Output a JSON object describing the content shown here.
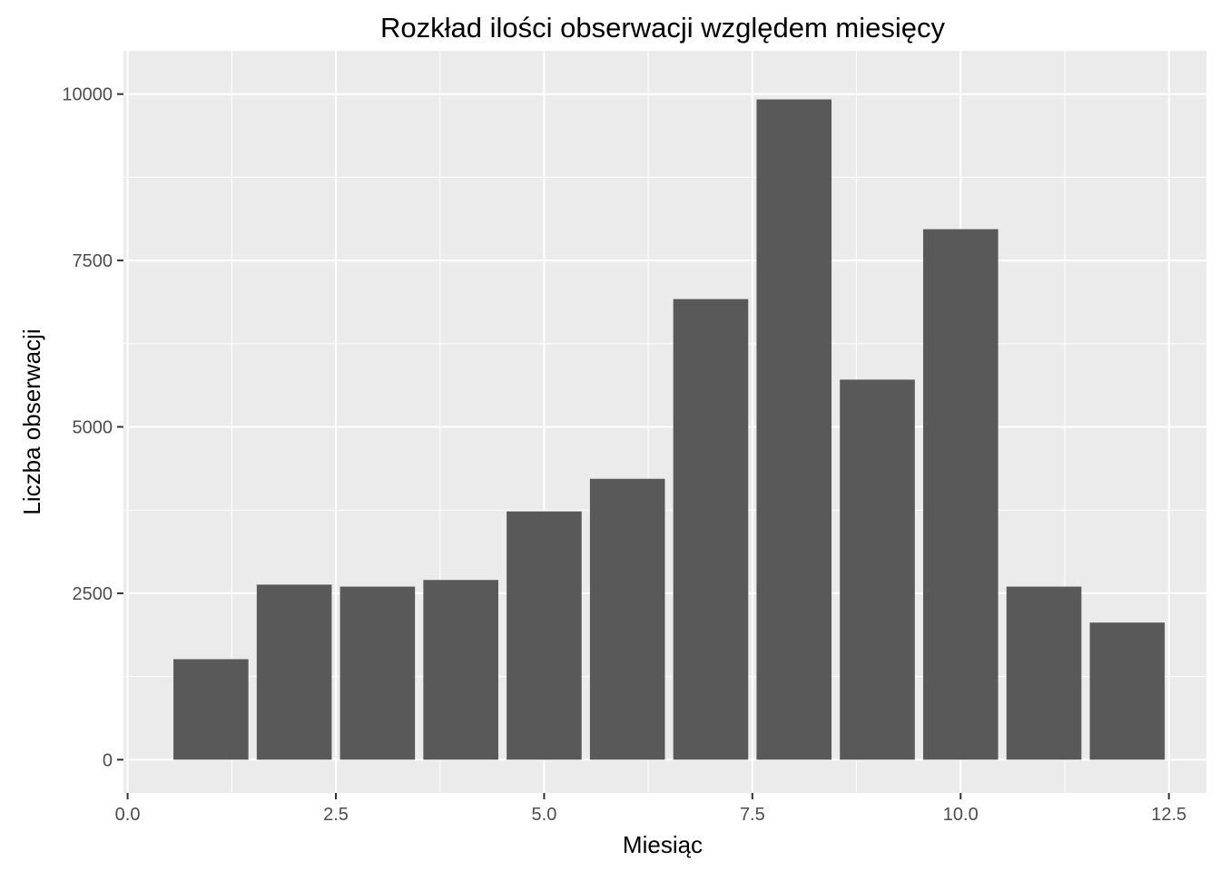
{
  "chart_data": {
    "type": "bar",
    "title": "Rozkład ilości obserwacji względem miesięcy",
    "xlabel": "Miesiąc",
    "ylabel": "Liczba obserwacji",
    "x": [
      1,
      2,
      3,
      4,
      5,
      6,
      7,
      8,
      9,
      10,
      11,
      12
    ],
    "values": [
      1510,
      2630,
      2600,
      2700,
      3730,
      4220,
      6920,
      9920,
      5710,
      7970,
      2600,
      2060
    ],
    "xlim": [
      -0.05,
      12.95
    ],
    "ylim": [
      -500,
      10650
    ],
    "x_ticks": [
      0.0,
      2.5,
      5.0,
      7.5,
      10.0,
      12.5
    ],
    "x_tick_labels": [
      "0.0",
      "2.5",
      "5.0",
      "7.5",
      "10.0",
      "12.5"
    ],
    "y_ticks": [
      0,
      2500,
      5000,
      7500,
      10000
    ],
    "y_tick_labels": [
      "0",
      "2500",
      "5000",
      "7500",
      "10000"
    ],
    "bar_width": 0.9,
    "grid": true,
    "colors": {
      "panel": "#ebebeb",
      "bar": "#595959",
      "grid": "#ffffff",
      "tick_text": "#4d4d4d",
      "tick_mark": "#333333"
    }
  }
}
